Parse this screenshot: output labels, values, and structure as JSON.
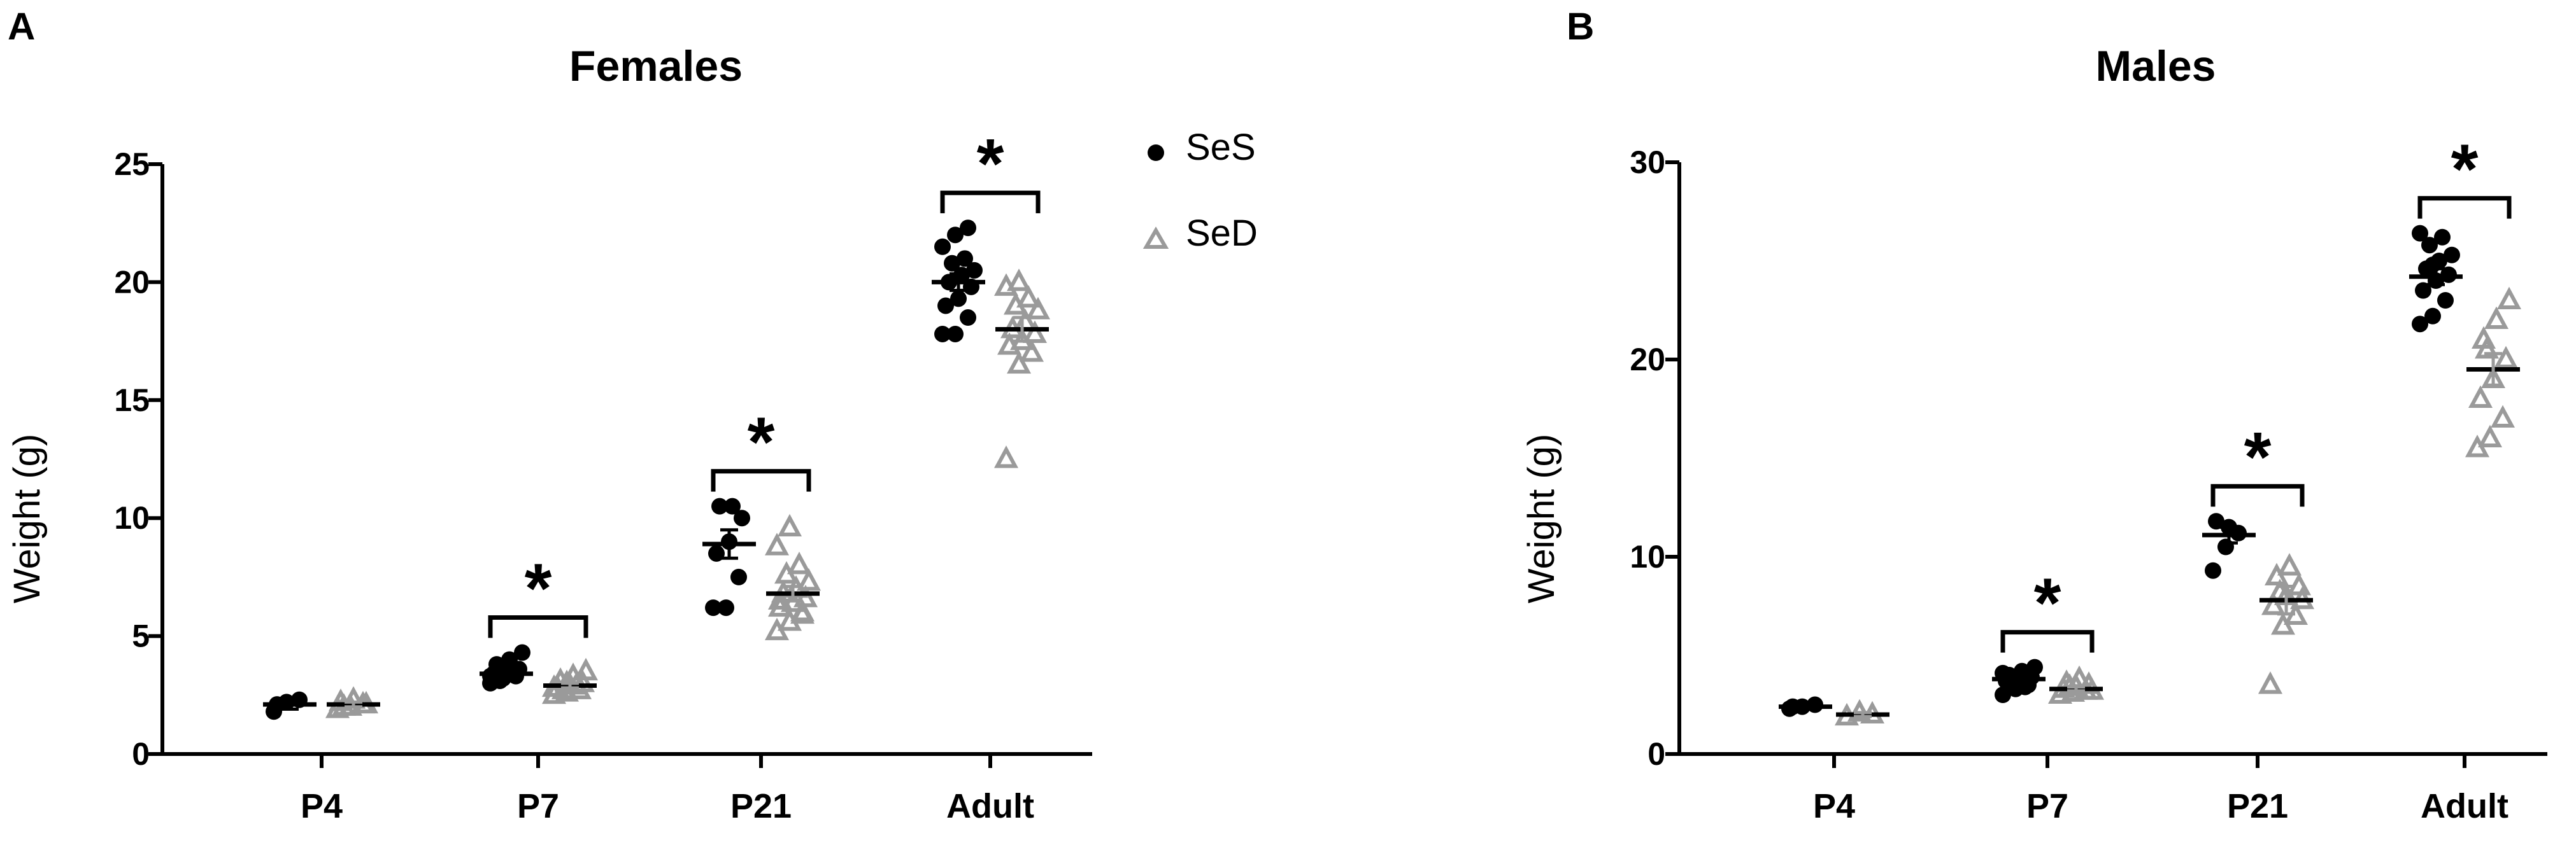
{
  "legend": {
    "position": "top-right of panel A",
    "items": [
      {
        "label": "SeS",
        "marker": "filled-circle",
        "color": "#000000"
      },
      {
        "label": "SeD",
        "marker": "open-triangle",
        "color": "#9a9a9a"
      }
    ]
  },
  "colors": {
    "SeS": "#000000",
    "SeD": "#9a9a9a",
    "axis": "#000000"
  },
  "chart_data": [
    {
      "panel": "A",
      "type": "scatter",
      "title": "Females",
      "xlabel": "",
      "ylabel": "Weight (g)",
      "ylim": [
        0,
        25
      ],
      "yticks": [
        0,
        5,
        10,
        15,
        20,
        25
      ],
      "categories": [
        "P4",
        "P7",
        "P21",
        "Adult"
      ],
      "series": [
        {
          "name": "SeS",
          "mean": [
            2.1,
            3.4,
            8.9,
            20.0
          ],
          "sem": [
            0.2,
            0.15,
            0.6,
            0.35
          ],
          "points": [
            [
              1.8,
              2.2,
              2.3,
              2.1
            ],
            [
              3.0,
              3.2,
              3.3,
              3.4,
              3.5,
              3.6,
              3.8,
              4.0,
              4.3,
              3.1,
              3.6,
              3.3
            ],
            [
              6.2,
              6.2,
              7.5,
              8.5,
              9.0,
              10.0,
              10.5,
              10.5
            ],
            [
              17.8,
              17.8,
              18.5,
              19.0,
              19.3,
              19.8,
              20.0,
              20.3,
              20.5,
              20.8,
              21.0,
              21.5,
              22.0,
              22.3
            ]
          ]
        },
        {
          "name": "SeD",
          "mean": [
            2.1,
            2.9,
            6.8,
            18.0
          ],
          "sem": [
            0.1,
            0.1,
            0.3,
            0.5
          ],
          "points": [
            [
              1.9,
              2.0,
              2.1,
              2.2,
              2.3,
              2.1,
              2.0
            ],
            [
              2.5,
              2.6,
              2.7,
              2.8,
              2.9,
              3.0,
              3.1,
              3.3,
              3.5,
              2.7,
              2.9,
              2.8,
              3.0
            ],
            [
              5.2,
              5.6,
              5.9,
              6.2,
              6.4,
              6.6,
              6.8,
              7.0,
              7.3,
              7.6,
              8.0,
              8.8,
              9.6,
              6.0,
              6.5
            ],
            [
              12.5,
              16.5,
              17.0,
              17.3,
              17.5,
              17.8,
              18.0,
              18.3,
              18.8,
              19.0,
              19.3,
              19.8,
              20.0
            ]
          ]
        }
      ],
      "significance": [
        {
          "category": "P4",
          "label": ""
        },
        {
          "category": "P7",
          "label": "*"
        },
        {
          "category": "P21",
          "label": "*"
        },
        {
          "category": "Adult",
          "label": "*"
        }
      ]
    },
    {
      "panel": "B",
      "type": "scatter",
      "title": "Males",
      "xlabel": "",
      "ylabel": "Weight (g)",
      "ylim": [
        0,
        30
      ],
      "yticks": [
        0,
        10,
        20,
        30
      ],
      "categories": [
        "P4",
        "P7",
        "P21",
        "Adult"
      ],
      "series": [
        {
          "name": "SeS",
          "mean": [
            2.4,
            3.8,
            11.1,
            24.2
          ],
          "sem": [
            0.05,
            0.15,
            0.4,
            0.4
          ],
          "points": [
            [
              2.3,
              2.4,
              2.5,
              2.4
            ],
            [
              3.0,
              3.3,
              3.5,
              3.7,
              3.8,
              3.9,
              4.0,
              4.2,
              4.4,
              3.6,
              3.4,
              4.1
            ],
            [
              9.3,
              10.5,
              11.2,
              11.8,
              11.5
            ],
            [
              21.8,
              22.2,
              23.0,
              23.5,
              24.0,
              24.3,
              24.6,
              25.0,
              25.3,
              25.8,
              26.2,
              26.4,
              24.8
            ]
          ]
        },
        {
          "name": "SeD",
          "mean": [
            2.0,
            3.3,
            7.8,
            19.5
          ],
          "sem": [
            0.1,
            0.1,
            0.7,
            0.8
          ],
          "points": [
            [
              1.9,
              2.1,
              2.0
            ],
            [
              3.0,
              3.1,
              3.2,
              3.3,
              3.4,
              3.5,
              3.6,
              3.8,
              3.2,
              3.4
            ],
            [
              3.5,
              6.5,
              7.0,
              7.5,
              8.0,
              8.5,
              9.0,
              9.5,
              7.8,
              8.2
            ],
            [
              15.5,
              16.0,
              17.0,
              18.0,
              19.0,
              20.0,
              21.0,
              22.0,
              23.0,
              20.5
            ]
          ]
        }
      ],
      "significance": [
        {
          "category": "P4",
          "label": ""
        },
        {
          "category": "P7",
          "label": "*"
        },
        {
          "category": "P21",
          "label": "*"
        },
        {
          "category": "Adult",
          "label": "*"
        }
      ]
    }
  ]
}
